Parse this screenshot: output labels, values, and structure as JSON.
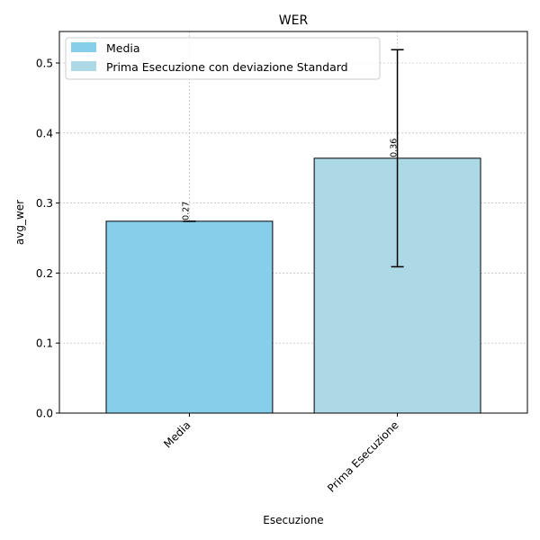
{
  "chart_data": {
    "type": "bar",
    "title": "WER",
    "xlabel": "Esecuzione",
    "ylabel": "avg_wer",
    "categories": [
      "Media",
      "Prima Esecuzione"
    ],
    "values": [
      0.274,
      0.364
    ],
    "value_labels": [
      "0.27",
      "0.36"
    ],
    "errors": [
      0.0,
      0.155
    ],
    "colors": [
      "#87ceeb",
      "#add8e6"
    ],
    "ylim": [
      0,
      0.545
    ],
    "yticks": [
      0.0,
      0.1,
      0.2,
      0.3,
      0.4,
      0.5
    ],
    "ytick_labels": [
      "0.0",
      "0.1",
      "0.2",
      "0.3",
      "0.4",
      "0.5"
    ],
    "grid": true,
    "legend_position": "top-left",
    "legend": [
      {
        "label": "Media",
        "color": "#87ceeb"
      },
      {
        "label": "Prima Esecuzione con deviazione Standard",
        "color": "#add8e6"
      }
    ]
  }
}
